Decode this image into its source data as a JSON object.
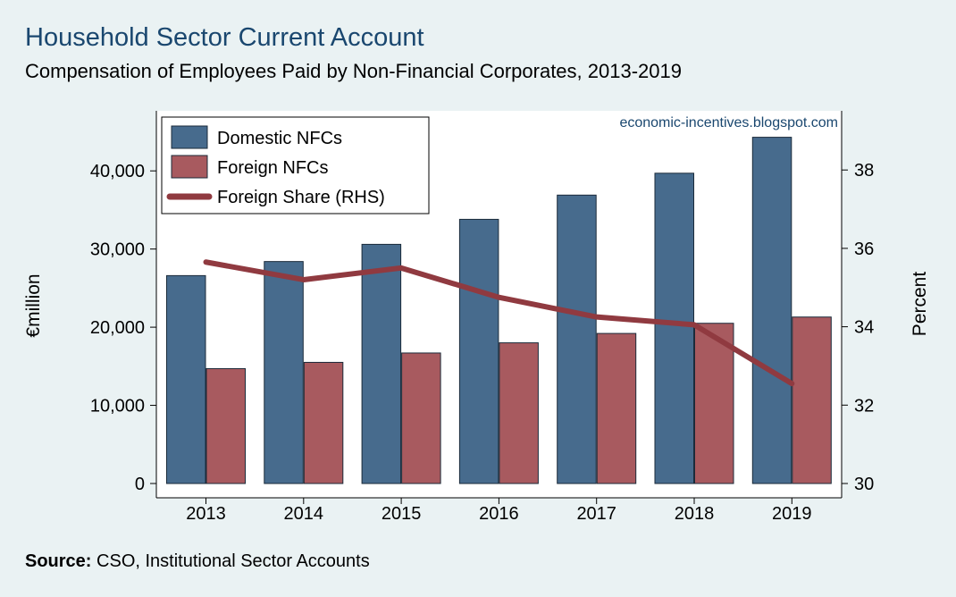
{
  "title": "Household Sector Current Account",
  "subtitle": "Compensation of Employees Paid by Non-Financial Corporates, 2013-2019",
  "source_label": "Source:",
  "source_text": "CSO, Institutional Sector Accounts",
  "watermark": "economic-incentives.blogspot.com",
  "colors": {
    "background": "#eaf2f3",
    "plot_bg": "#ffffff",
    "domestic": "#476b8d",
    "foreign": "#a85a5f",
    "share_line": "#903a40",
    "bar_edge": "#1b2b3a"
  },
  "chart_data": {
    "type": "bar",
    "categories": [
      "2013",
      "2014",
      "2015",
      "2016",
      "2017",
      "2018",
      "2019"
    ],
    "series": [
      {
        "name": "Domestic NFCs",
        "axis": "left",
        "values": [
          26600,
          28400,
          30600,
          33800,
          36900,
          39700,
          44300
        ]
      },
      {
        "name": "Foreign NFCs",
        "axis": "left",
        "values": [
          14700,
          15500,
          16700,
          18000,
          19200,
          20500,
          21300
        ]
      },
      {
        "name": "Foreign Share (RHS)",
        "axis": "right",
        "type": "line",
        "values": [
          35.65,
          35.2,
          35.5,
          34.75,
          34.25,
          34.05,
          32.55
        ]
      }
    ],
    "ylabel": "€million",
    "y2label": "Percent",
    "ylim": [
      0,
      47000
    ],
    "y2lim": [
      30,
      39.0
    ],
    "yticks": [
      "0",
      "10,000",
      "20,000",
      "30,000",
      "40,000"
    ],
    "yticks_values": [
      0,
      10000,
      20000,
      30000,
      40000
    ],
    "y2ticks": [
      "30",
      "32",
      "34",
      "36",
      "38"
    ],
    "y2ticks_values": [
      30,
      32,
      34,
      36,
      38
    ],
    "grid": false,
    "legend_position": "top-left"
  }
}
